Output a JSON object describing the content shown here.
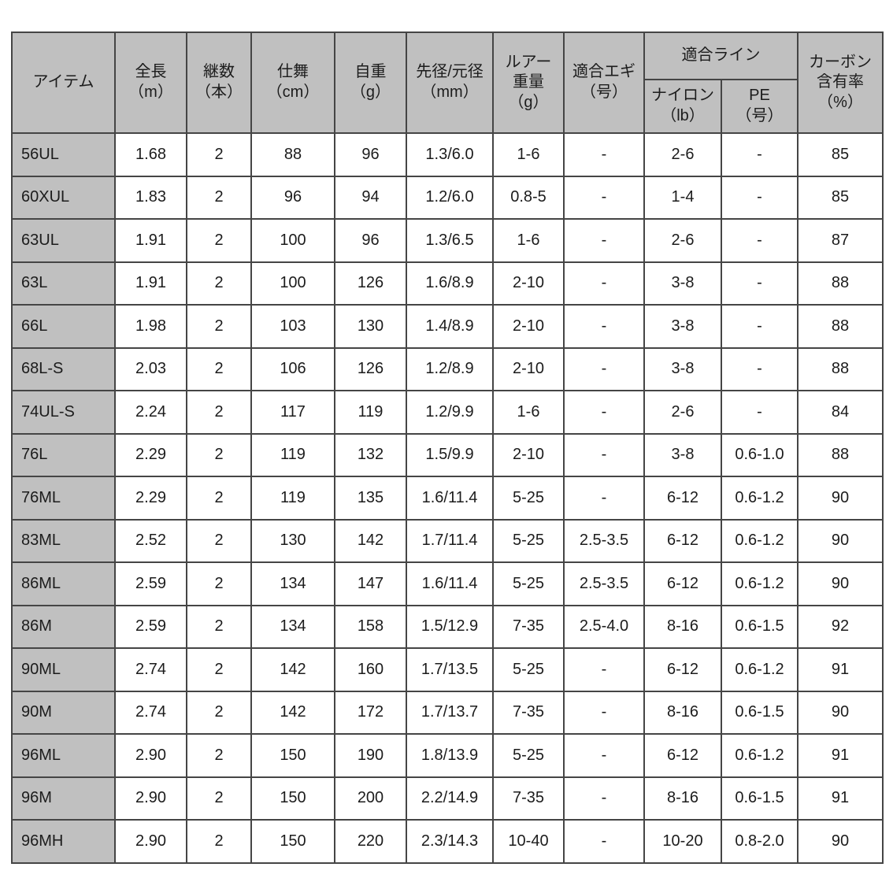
{
  "chart_data": {
    "type": "table",
    "title": "",
    "column_group": {
      "label": "適合ライン",
      "spans": [
        "nylon",
        "pe"
      ]
    },
    "columns": [
      {
        "key": "item",
        "label": "アイテム"
      },
      {
        "key": "zencho",
        "label": "全長\n（m）"
      },
      {
        "key": "tsugisu",
        "label": "継数\n（本）"
      },
      {
        "key": "shimai",
        "label": "仕舞\n（cm）"
      },
      {
        "key": "jijuu",
        "label": "自重\n（g）"
      },
      {
        "key": "sakimoto",
        "label": "先径/元径\n（mm）"
      },
      {
        "key": "lure",
        "label": "ルアー\n重量\n（g）"
      },
      {
        "key": "egi",
        "label": "適合エギ\n（号）"
      },
      {
        "key": "nylon",
        "label": "ナイロン\n（lb）"
      },
      {
        "key": "pe",
        "label": "PE\n（号）"
      },
      {
        "key": "carbon",
        "label": "カーボン\n含有率\n（%）"
      }
    ],
    "rows": [
      {
        "item": "56UL",
        "values": [
          "1.68",
          "2",
          "88",
          "96",
          "1.3/6.0",
          "1-6",
          "-",
          "2-6",
          "-",
          "85"
        ]
      },
      {
        "item": "60XUL",
        "values": [
          "1.83",
          "2",
          "96",
          "94",
          "1.2/6.0",
          "0.8-5",
          "-",
          "1-4",
          "-",
          "85"
        ]
      },
      {
        "item": "63UL",
        "values": [
          "1.91",
          "2",
          "100",
          "96",
          "1.3/6.5",
          "1-6",
          "-",
          "2-6",
          "-",
          "87"
        ]
      },
      {
        "item": "63L",
        "values": [
          "1.91",
          "2",
          "100",
          "126",
          "1.6/8.9",
          "2-10",
          "-",
          "3-8",
          "-",
          "88"
        ]
      },
      {
        "item": "66L",
        "values": [
          "1.98",
          "2",
          "103",
          "130",
          "1.4/8.9",
          "2-10",
          "-",
          "3-8",
          "-",
          "88"
        ]
      },
      {
        "item": "68L-S",
        "values": [
          "2.03",
          "2",
          "106",
          "126",
          "1.2/8.9",
          "2-10",
          "-",
          "3-8",
          "-",
          "88"
        ]
      },
      {
        "item": "74UL-S",
        "values": [
          "2.24",
          "2",
          "117",
          "119",
          "1.2/9.9",
          "1-6",
          "-",
          "2-6",
          "-",
          "84"
        ]
      },
      {
        "item": "76L",
        "values": [
          "2.29",
          "2",
          "119",
          "132",
          "1.5/9.9",
          "2-10",
          "-",
          "3-8",
          "0.6-1.0",
          "88"
        ]
      },
      {
        "item": "76ML",
        "values": [
          "2.29",
          "2",
          "119",
          "135",
          "1.6/11.4",
          "5-25",
          "-",
          "6-12",
          "0.6-1.2",
          "90"
        ]
      },
      {
        "item": "83ML",
        "values": [
          "2.52",
          "2",
          "130",
          "142",
          "1.7/11.4",
          "5-25",
          "2.5-3.5",
          "6-12",
          "0.6-1.2",
          "90"
        ]
      },
      {
        "item": "86ML",
        "values": [
          "2.59",
          "2",
          "134",
          "147",
          "1.6/11.4",
          "5-25",
          "2.5-3.5",
          "6-12",
          "0.6-1.2",
          "90"
        ]
      },
      {
        "item": "86M",
        "values": [
          "2.59",
          "2",
          "134",
          "158",
          "1.5/12.9",
          "7-35",
          "2.5-4.0",
          "8-16",
          "0.6-1.5",
          "92"
        ]
      },
      {
        "item": "90ML",
        "values": [
          "2.74",
          "2",
          "142",
          "160",
          "1.7/13.5",
          "5-25",
          "-",
          "6-12",
          "0.6-1.2",
          "91"
        ]
      },
      {
        "item": "90M",
        "values": [
          "2.74",
          "2",
          "142",
          "172",
          "1.7/13.7",
          "7-35",
          "-",
          "8-16",
          "0.6-1.5",
          "90"
        ]
      },
      {
        "item": "96ML",
        "values": [
          "2.90",
          "2",
          "150",
          "190",
          "1.8/13.9",
          "5-25",
          "-",
          "6-12",
          "0.6-1.2",
          "91"
        ]
      },
      {
        "item": "96M",
        "values": [
          "2.90",
          "2",
          "150",
          "200",
          "2.2/14.9",
          "7-35",
          "-",
          "8-16",
          "0.6-1.5",
          "91"
        ]
      },
      {
        "item": "96MH",
        "values": [
          "2.90",
          "2",
          "150",
          "220",
          "2.3/14.3",
          "10-40",
          "-",
          "10-20",
          "0.8-2.0",
          "90"
        ]
      }
    ],
    "colors": {
      "header_background": "#c0c0c0",
      "row_label_background": "#c0c0c0",
      "cell_background": "#ffffff",
      "border": "#454545",
      "text": "#1c1c1c"
    }
  }
}
